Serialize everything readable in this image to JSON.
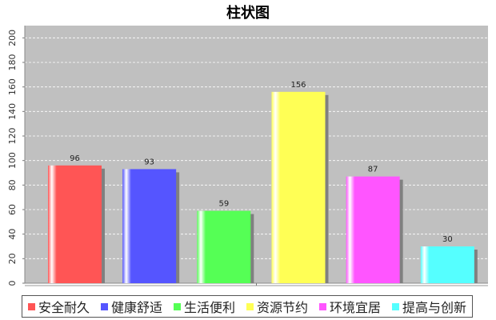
{
  "chart_data": {
    "type": "bar",
    "title": "柱状图",
    "xlabel": "",
    "ylabel": "",
    "ylim": [
      0,
      210
    ],
    "yticks": [
      0,
      20,
      40,
      60,
      80,
      100,
      120,
      140,
      160,
      180,
      200
    ],
    "grid": true,
    "legend_position": "bottom",
    "series": [
      {
        "name": "安全耐久",
        "value": 96,
        "color": "#ff5555"
      },
      {
        "name": "健康舒适",
        "value": 93,
        "color": "#5555ff"
      },
      {
        "name": "生活便利",
        "value": 59,
        "color": "#55ff55"
      },
      {
        "name": "资源节约",
        "value": 156,
        "color": "#ffff55"
      },
      {
        "name": "环境宜居",
        "value": 87,
        "color": "#ff55ff"
      },
      {
        "name": "提高与创新",
        "value": 30,
        "color": "#55ffff"
      }
    ],
    "plot_background": "#c0c0c0"
  }
}
